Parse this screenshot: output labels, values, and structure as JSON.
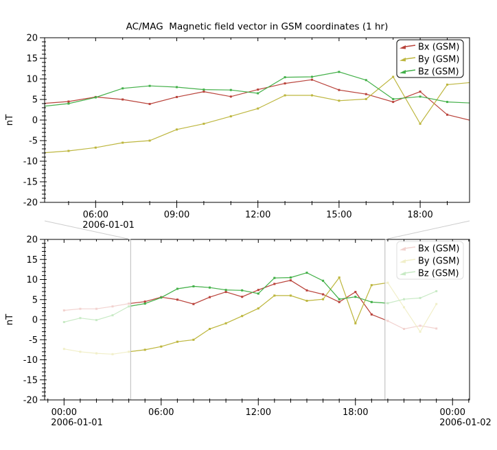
{
  "figure": {
    "colors": {
      "axis": "#000000",
      "connector": "#cccccc",
      "window_line": "#b9b9b9",
      "legend_border": "#000000",
      "legend_faded_border": "#dddddd",
      "legend_faded_text": "#c9c9c9",
      "background": "#ffffff"
    }
  },
  "chart_data": {
    "type": "line",
    "title": "AC/MAG  Magnetic field vector in GSM coordinates (1 hr)",
    "ylabel": "nT",
    "ylim": [
      -20,
      20
    ],
    "y_major_tick_step": 5,
    "y_minor_tick_step": 1,
    "x_hours": [
      0,
      1,
      2,
      3,
      4,
      5,
      6,
      7,
      8,
      9,
      10,
      11,
      12,
      13,
      14,
      15,
      16,
      17,
      18,
      19,
      20,
      21,
      22,
      23
    ],
    "series": [
      {
        "name": "Bx (GSM)",
        "key": "bx",
        "color": "#b9423a",
        "faded_color": "#f2d2cf",
        "values": [
          2.3,
          2.7,
          2.7,
          3.3,
          4.0,
          4.5,
          5.6,
          5.0,
          3.9,
          5.6,
          6.9,
          5.7,
          7.4,
          8.9,
          9.8,
          7.3,
          6.3,
          4.4,
          6.9,
          1.3,
          -0.3,
          -2.3,
          -1.5,
          -2.2
        ]
      },
      {
        "name": "By (GSM)",
        "key": "by",
        "color": "#bdb63e",
        "faded_color": "#f1efc9",
        "values": [
          -7.3,
          -8.0,
          -8.4,
          -8.6,
          -8.0,
          -7.5,
          -6.7,
          -5.5,
          -5.0,
          -2.3,
          -0.9,
          0.9,
          2.8,
          6.0,
          6.0,
          4.7,
          5.1,
          10.5,
          -0.9,
          8.6,
          9.2,
          3.1,
          -3.0,
          3.9
        ]
      },
      {
        "name": "Bz (GSM)",
        "key": "bz",
        "color": "#43b049",
        "faded_color": "#c8eac5",
        "values": [
          -0.6,
          0.4,
          -0.1,
          1.1,
          3.3,
          4.0,
          5.5,
          7.7,
          8.3,
          8.0,
          7.4,
          7.3,
          6.5,
          10.4,
          10.5,
          11.7,
          9.7,
          5.1,
          5.7,
          4.4,
          4.1,
          5.1,
          5.4,
          7.1
        ]
      }
    ],
    "panels": [
      {
        "id": "top",
        "xlim": [
          4.114,
          19.825
        ],
        "x_major_ticks": [
          {
            "hour": 6,
            "label": "06:00"
          },
          {
            "hour": 9,
            "label": "09:00"
          },
          {
            "hour": 12,
            "label": "12:00"
          },
          {
            "hour": 15,
            "label": "15:00"
          },
          {
            "hour": 18,
            "label": "18:00"
          }
        ],
        "date_labels": [
          {
            "hour": 6,
            "text": "2006-01-01"
          }
        ],
        "legend_faded": false
      },
      {
        "id": "bottom",
        "xlim": [
          -1.2,
          25.05
        ],
        "zoom_window": [
          4.114,
          19.825
        ],
        "x_major_ticks": [
          {
            "hour": 0,
            "label": "00:00"
          },
          {
            "hour": 6,
            "label": "06:00"
          },
          {
            "hour": 12,
            "label": "12:00"
          },
          {
            "hour": 18,
            "label": "18:00"
          },
          {
            "hour": 24,
            "label": "00:00"
          }
        ],
        "date_labels": [
          {
            "hour": 0,
            "text": "2006-01-01"
          },
          {
            "hour": 24,
            "text": "2006-01-02"
          }
        ],
        "legend_faded": true
      }
    ],
    "legend_position": "top-right",
    "grid": false
  }
}
